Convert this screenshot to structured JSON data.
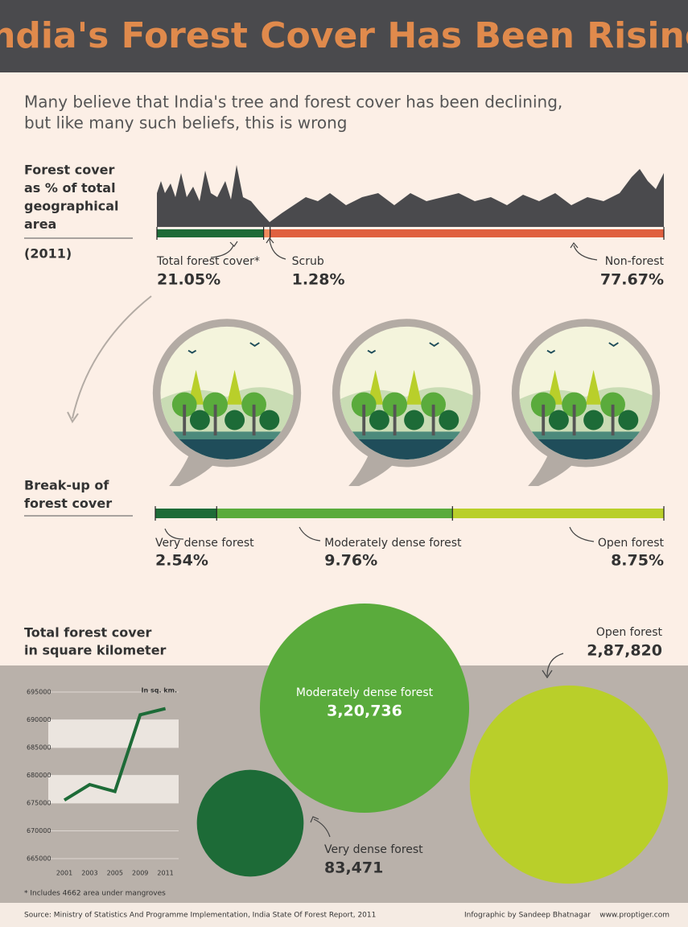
{
  "title": "India's Forest Cover Has Been Rising",
  "subtitle": [
    "Many believe that India's tree and forest cover has been declining,",
    "but like many such beliefs, this is wrong"
  ],
  "chart_data": [
    {
      "type": "stacked_bar",
      "title": [
        "Forest cover",
        "as % of total",
        "geographical",
        "area"
      ],
      "subtitle": "(2011)",
      "categories": [
        "Total forest cover*",
        "Scrub",
        "Non-forest"
      ],
      "values": [
        21.05,
        1.28,
        77.67
      ],
      "value_labels": [
        "21.05%",
        "1.28%",
        "77.67%"
      ],
      "colors": [
        "#1d6b37",
        "#f08a5d",
        "#e0603f"
      ]
    },
    {
      "type": "stacked_bar",
      "title": [
        "Break-up of",
        "forest cover"
      ],
      "categories": [
        "Very dense forest",
        "Moderately dense forest",
        "Open forest"
      ],
      "values": [
        2.54,
        9.76,
        8.75
      ],
      "value_labels": [
        "2.54%",
        "9.76%",
        "8.75%"
      ],
      "colors": [
        "#1d6b37",
        "#5aab3c",
        "#b9cf2a"
      ]
    },
    {
      "type": "bubble",
      "title": [
        "Total forest cover",
        "in square kilometer"
      ],
      "categories": [
        "Moderately dense forest",
        "Open forest",
        "Very dense forest"
      ],
      "values": [
        320736,
        287820,
        83471
      ],
      "value_labels": [
        "3,20,736",
        "2,87,820",
        "83,471"
      ],
      "colors": [
        "#5aab3c",
        "#b9cf2a",
        "#1d6b37"
      ]
    },
    {
      "type": "line",
      "unit": "In sq. km.",
      "x": [
        "2001",
        "2003",
        "2005",
        "2009",
        "2011"
      ],
      "values": [
        675538,
        678333,
        677088,
        690899,
        692027
      ],
      "color": "#1d6b37",
      "ylim": [
        665000,
        695000
      ],
      "yticks": [
        665000,
        670000,
        675000,
        680000,
        685000,
        690000,
        695000
      ]
    }
  ],
  "footnote": "* Includes 4662 area under mangroves",
  "footer": {
    "source": "Source: Ministry of Statistics And Programme Implementation, India State Of Forest Report, 2011",
    "credit": "Infographic by Sandeep Bhatnagar",
    "url": "www.proptiger.com"
  }
}
